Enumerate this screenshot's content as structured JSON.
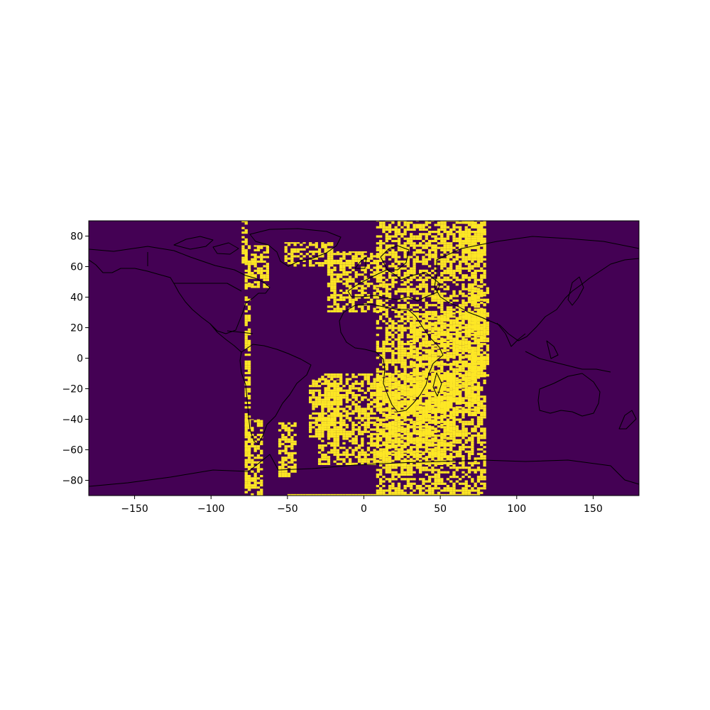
{
  "chart_data": {
    "type": "heatmap",
    "title": "",
    "xlabel": "",
    "ylabel": "",
    "xlim": [
      -180,
      180
    ],
    "ylim": [
      -90,
      90
    ],
    "x_ticks": [
      {
        "value": -150,
        "label": "−150"
      },
      {
        "value": -100,
        "label": "−100"
      },
      {
        "value": -50,
        "label": "−50"
      },
      {
        "value": 0,
        "label": "0"
      },
      {
        "value": 50,
        "label": "50"
      },
      {
        "value": 100,
        "label": "100"
      },
      {
        "value": 150,
        "label": "150"
      }
    ],
    "y_ticks": [
      {
        "value": 80,
        "label": "80"
      },
      {
        "value": 60,
        "label": "60"
      },
      {
        "value": 40,
        "label": "40"
      },
      {
        "value": 20,
        "label": "20"
      },
      {
        "value": 0,
        "label": "0"
      },
      {
        "value": -20,
        "label": "−20"
      },
      {
        "value": -40,
        "label": "−40"
      },
      {
        "value": -60,
        "label": "−60"
      },
      {
        "value": -80,
        "label": "−80"
      }
    ],
    "grid": false,
    "colormap": "viridis",
    "background_color": "#440154",
    "highlight_color": "#fde725",
    "overlay": "coastlines and country borders",
    "highlighted_regions": [
      {
        "lon": [
          -80,
          -77
        ],
        "lat": [
          62,
          90
        ]
      },
      {
        "lon": [
          -78,
          -62
        ],
        "lat": [
          46,
          74
        ]
      },
      {
        "lon": [
          -78,
          -74
        ],
        "lat": [
          -90,
          62
        ]
      },
      {
        "lon": [
          -78,
          -66
        ],
        "lat": [
          -90,
          -40
        ]
      },
      {
        "lon": [
          -56,
          -44
        ],
        "lat": [
          -78,
          -42
        ]
      },
      {
        "lon": [
          -52,
          -20
        ],
        "lat": [
          60,
          76
        ]
      },
      {
        "lon": [
          -36,
          -14
        ],
        "lat": [
          -52,
          -14
        ]
      },
      {
        "lon": [
          -30,
          60
        ],
        "lat": [
          -70,
          -10
        ]
      },
      {
        "lon": [
          -24,
          12
        ],
        "lat": [
          30,
          70
        ]
      },
      {
        "lon": [
          8,
          80
        ],
        "lat": [
          -92,
          90
        ]
      },
      {
        "lon": [
          30,
          76
        ],
        "lat": [
          -36,
          30
        ]
      },
      {
        "lon": [
          68,
          82
        ],
        "lat": [
          -12,
          48
        ]
      },
      {
        "lon": [
          62,
          80
        ],
        "lat": [
          64,
          90
        ]
      },
      {
        "lon": [
          -50,
          74
        ],
        "lat": [
          -90,
          -89
        ]
      }
    ]
  }
}
